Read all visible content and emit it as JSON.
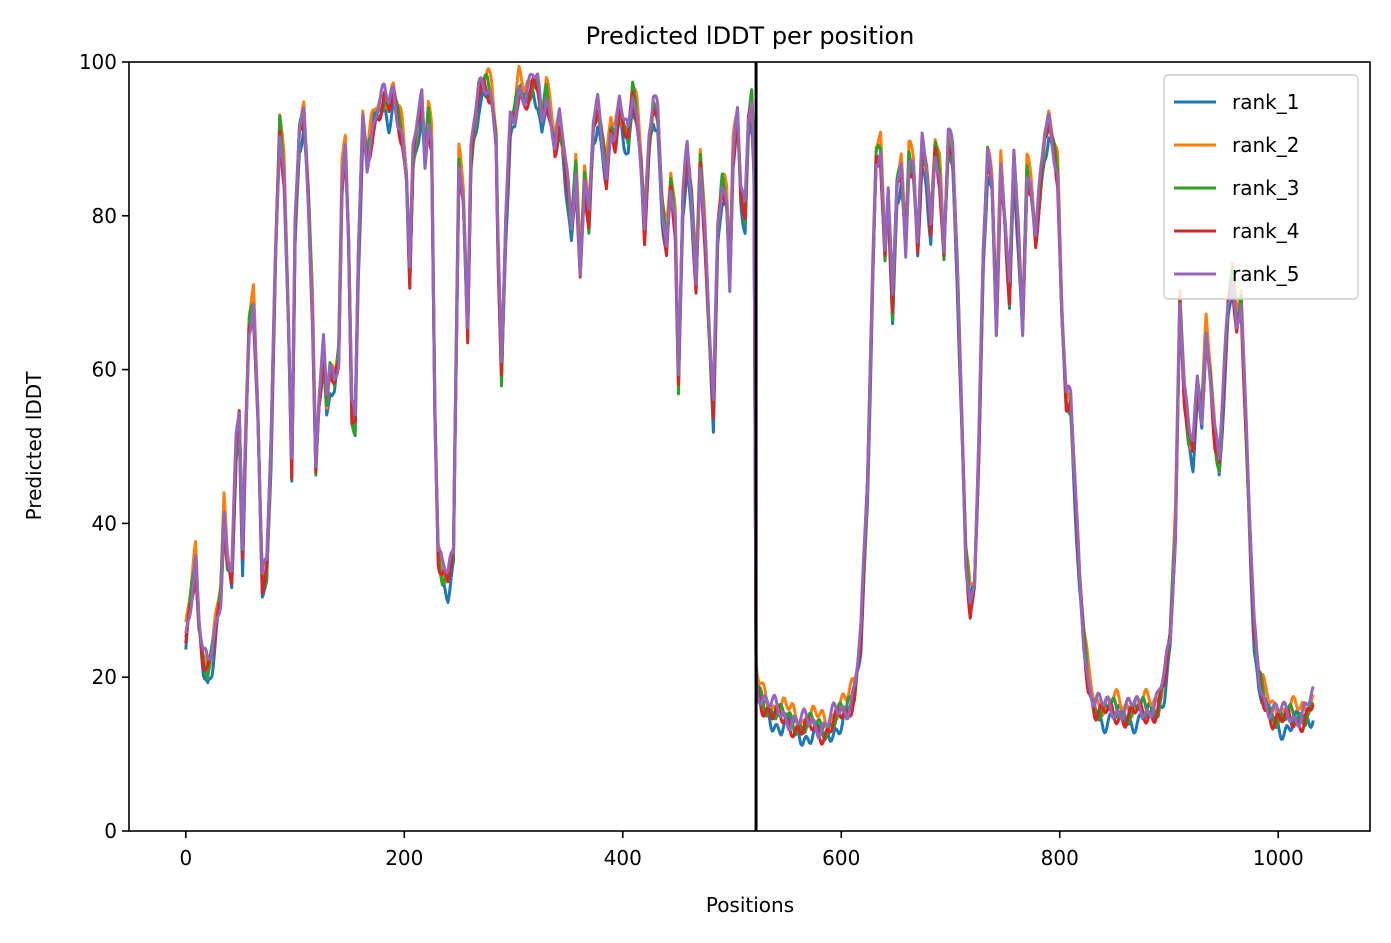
{
  "chart_data": {
    "type": "line",
    "title": "Predicted lDDT per position",
    "xlabel": "Positions",
    "ylabel": "Predicted lDDT",
    "xlim": [
      -52,
      1084
    ],
    "ylim": [
      0,
      100
    ],
    "xticks": [
      0,
      200,
      400,
      600,
      800,
      1000
    ],
    "yticks": [
      0,
      20,
      40,
      60,
      80,
      100
    ],
    "grid": false,
    "legend_position": "top-right",
    "chain_break": 522,
    "series_colors": [
      "#1f77b4",
      "#ff7f0e",
      "#2ca02c",
      "#d62728",
      "#9467bd"
    ],
    "series": [
      {
        "name": "rank_1",
        "offset": -1.4
      },
      {
        "name": "rank_2",
        "offset": 0.6
      },
      {
        "name": "rank_3",
        "offset": -0.4
      },
      {
        "name": "rank_4",
        "offset": -0.9
      },
      {
        "name": "rank_5",
        "offset": 0.0
      }
    ],
    "profile": [
      [
        0,
        25
      ],
      [
        5,
        31
      ],
      [
        9,
        36
      ],
      [
        12,
        28
      ],
      [
        16,
        23
      ],
      [
        20,
        21
      ],
      [
        24,
        23
      ],
      [
        28,
        27
      ],
      [
        32,
        31
      ],
      [
        35,
        42
      ],
      [
        38,
        36
      ],
      [
        42,
        34
      ],
      [
        46,
        50
      ],
      [
        49,
        54
      ],
      [
        52,
        36
      ],
      [
        55,
        52
      ],
      [
        58,
        66
      ],
      [
        62,
        69
      ],
      [
        66,
        55
      ],
      [
        70,
        33
      ],
      [
        74,
        34
      ],
      [
        78,
        50
      ],
      [
        82,
        74
      ],
      [
        86,
        92
      ],
      [
        90,
        86
      ],
      [
        94,
        67
      ],
      [
        97,
        48
      ],
      [
        100,
        78
      ],
      [
        104,
        91
      ],
      [
        108,
        93
      ],
      [
        112,
        83
      ],
      [
        116,
        68
      ],
      [
        119,
        48
      ],
      [
        122,
        57
      ],
      [
        126,
        63
      ],
      [
        129,
        56
      ],
      [
        132,
        60
      ],
      [
        136,
        58
      ],
      [
        140,
        62
      ],
      [
        143,
        85
      ],
      [
        146,
        90
      ],
      [
        149,
        78
      ],
      [
        152,
        55
      ],
      [
        155,
        53
      ],
      [
        158,
        75
      ],
      [
        162,
        92
      ],
      [
        166,
        87
      ],
      [
        170,
        91
      ],
      [
        174,
        94
      ],
      [
        178,
        95
      ],
      [
        182,
        96
      ],
      [
        186,
        94
      ],
      [
        190,
        96
      ],
      [
        194,
        93
      ],
      [
        198,
        91
      ],
      [
        202,
        86
      ],
      [
        205,
        73
      ],
      [
        208,
        88
      ],
      [
        212,
        92
      ],
      [
        216,
        95
      ],
      [
        219,
        87
      ],
      [
        222,
        93
      ],
      [
        225,
        90
      ],
      [
        228,
        55
      ],
      [
        231,
        37
      ],
      [
        235,
        34
      ],
      [
        240,
        33
      ],
      [
        245,
        36
      ],
      [
        250,
        87
      ],
      [
        254,
        83
      ],
      [
        258,
        66
      ],
      [
        261,
        88
      ],
      [
        264,
        92
      ],
      [
        268,
        96
      ],
      [
        272,
        97
      ],
      [
        276,
        97
      ],
      [
        280,
        96
      ],
      [
        284,
        91
      ],
      [
        286,
        76
      ],
      [
        289,
        60
      ],
      [
        293,
        80
      ],
      [
        297,
        92
      ],
      [
        301,
        93
      ],
      [
        305,
        97
      ],
      [
        310,
        96
      ],
      [
        314,
        97
      ],
      [
        318,
        98
      ],
      [
        322,
        97
      ],
      [
        326,
        92
      ],
      [
        330,
        96
      ],
      [
        334,
        93
      ],
      [
        338,
        90
      ],
      [
        342,
        93
      ],
      [
        346,
        89
      ],
      [
        350,
        83
      ],
      [
        353,
        78
      ],
      [
        357,
        86
      ],
      [
        361,
        73
      ],
      [
        365,
        86
      ],
      [
        369,
        80
      ],
      [
        373,
        92
      ],
      [
        377,
        94
      ],
      [
        381,
        90
      ],
      [
        385,
        85
      ],
      [
        389,
        92
      ],
      [
        393,
        91
      ],
      [
        397,
        95
      ],
      [
        401,
        92
      ],
      [
        405,
        90
      ],
      [
        409,
        96
      ],
      [
        413,
        93
      ],
      [
        417,
        87
      ],
      [
        420,
        79
      ],
      [
        424,
        90
      ],
      [
        428,
        95
      ],
      [
        432,
        93
      ],
      [
        436,
        81
      ],
      [
        440,
        76
      ],
      [
        444,
        85
      ],
      [
        448,
        80
      ],
      [
        451,
        59
      ],
      [
        455,
        83
      ],
      [
        459,
        88
      ],
      [
        463,
        82
      ],
      [
        467,
        71
      ],
      [
        471,
        88
      ],
      [
        475,
        79
      ],
      [
        479,
        66
      ],
      [
        483,
        55
      ],
      [
        487,
        78
      ],
      [
        491,
        84
      ],
      [
        495,
        82
      ],
      [
        498,
        72
      ],
      [
        501,
        89
      ],
      [
        505,
        94
      ],
      [
        508,
        84
      ],
      [
        512,
        80
      ],
      [
        515,
        92
      ],
      [
        518,
        95
      ],
      [
        520,
        87
      ],
      [
        522,
        20
      ],
      [
        523,
        19
      ],
      [
        527,
        18
      ],
      [
        532,
        17
      ],
      [
        537,
        16
      ],
      [
        545,
        15
      ],
      [
        555,
        15
      ],
      [
        565,
        14
      ],
      [
        575,
        14
      ],
      [
        585,
        14
      ],
      [
        595,
        15
      ],
      [
        605,
        16
      ],
      [
        612,
        19
      ],
      [
        618,
        26
      ],
      [
        624,
        45
      ],
      [
        628,
        68
      ],
      [
        632,
        88
      ],
      [
        636,
        89
      ],
      [
        640,
        76
      ],
      [
        643,
        84
      ],
      [
        647,
        68
      ],
      [
        651,
        84
      ],
      [
        655,
        86
      ],
      [
        659,
        76
      ],
      [
        662,
        88
      ],
      [
        666,
        87
      ],
      [
        670,
        77
      ],
      [
        674,
        89
      ],
      [
        678,
        86
      ],
      [
        682,
        78
      ],
      [
        686,
        89
      ],
      [
        690,
        86
      ],
      [
        694,
        76
      ],
      [
        698,
        91
      ],
      [
        702,
        88
      ],
      [
        706,
        74
      ],
      [
        710,
        55
      ],
      [
        714,
        36
      ],
      [
        718,
        30
      ],
      [
        722,
        33
      ],
      [
        726,
        51
      ],
      [
        730,
        75
      ],
      [
        734,
        88
      ],
      [
        738,
        84
      ],
      [
        742,
        66
      ],
      [
        746,
        87
      ],
      [
        750,
        80
      ],
      [
        754,
        70
      ],
      [
        758,
        88
      ],
      [
        762,
        78
      ],
      [
        766,
        65
      ],
      [
        770,
        86
      ],
      [
        774,
        84
      ],
      [
        778,
        78
      ],
      [
        782,
        84
      ],
      [
        786,
        90
      ],
      [
        790,
        92
      ],
      [
        794,
        89
      ],
      [
        798,
        86
      ],
      [
        802,
        68
      ],
      [
        806,
        57
      ],
      [
        810,
        56
      ],
      [
        814,
        45
      ],
      [
        818,
        33
      ],
      [
        822,
        25
      ],
      [
        826,
        20
      ],
      [
        832,
        17
      ],
      [
        840,
        16
      ],
      [
        850,
        16
      ],
      [
        860,
        16
      ],
      [
        870,
        16
      ],
      [
        880,
        16
      ],
      [
        890,
        17
      ],
      [
        896,
        20
      ],
      [
        901,
        25
      ],
      [
        906,
        40
      ],
      [
        910,
        70
      ],
      [
        914,
        58
      ],
      [
        918,
        52
      ],
      [
        922,
        50
      ],
      [
        926,
        58
      ],
      [
        930,
        54
      ],
      [
        934,
        65
      ],
      [
        938,
        60
      ],
      [
        942,
        52
      ],
      [
        946,
        48
      ],
      [
        950,
        58
      ],
      [
        954,
        68
      ],
      [
        958,
        72
      ],
      [
        962,
        66
      ],
      [
        966,
        70
      ],
      [
        970,
        55
      ],
      [
        974,
        40
      ],
      [
        978,
        26
      ],
      [
        982,
        20
      ],
      [
        988,
        17
      ],
      [
        995,
        16
      ],
      [
        1005,
        15
      ],
      [
        1015,
        15
      ],
      [
        1025,
        16
      ],
      [
        1032,
        17
      ]
    ]
  }
}
